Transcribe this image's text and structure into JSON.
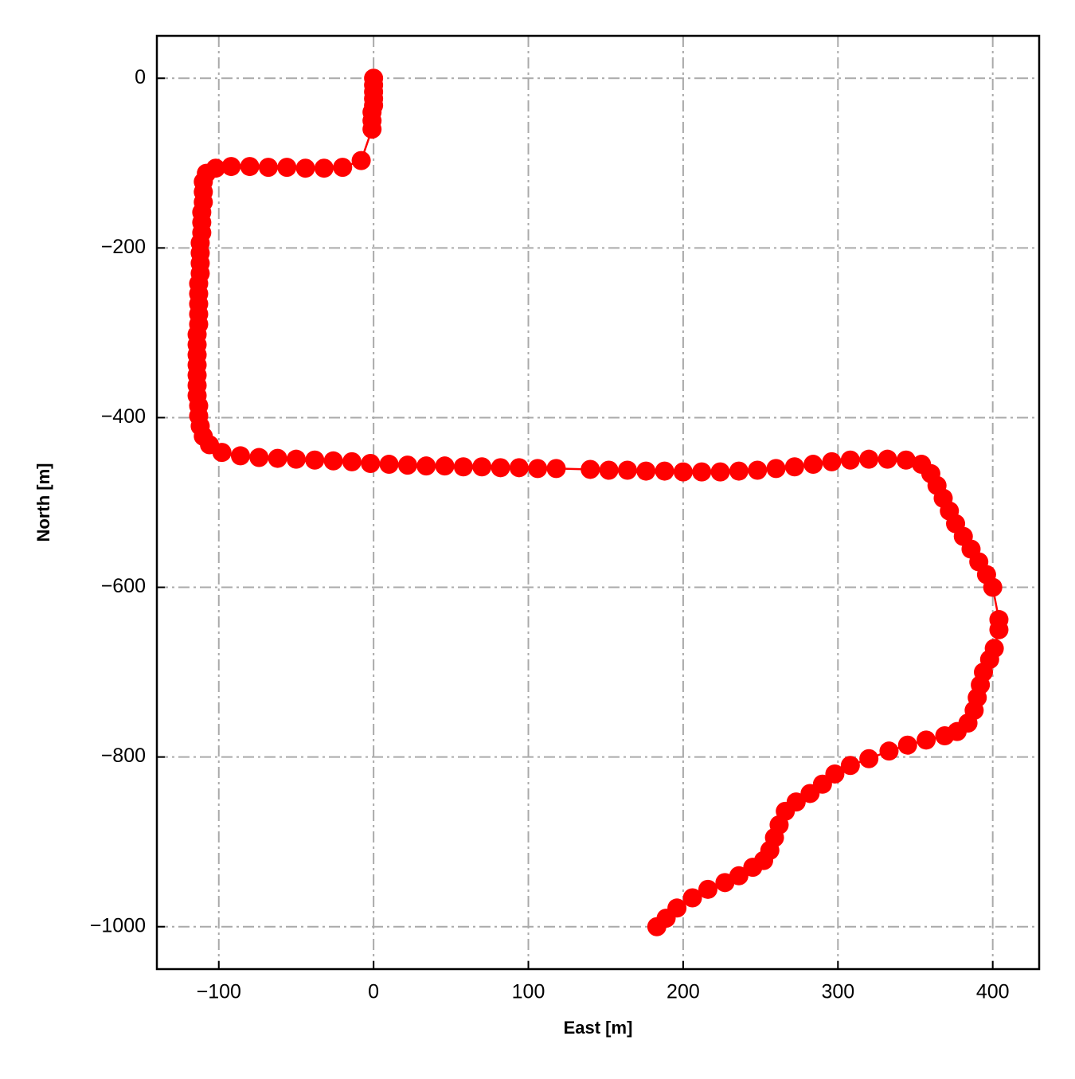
{
  "chart_data": {
    "type": "line",
    "xlabel": "East [m]",
    "ylabel": "North [m]",
    "x": [
      0,
      0,
      0,
      0,
      0,
      -1,
      -1,
      -1,
      -8,
      -20,
      -32,
      -44,
      -56,
      -68,
      -80,
      -92,
      -102,
      -108,
      -110,
      -110,
      -110,
      -111,
      -111,
      -111,
      -112,
      -112,
      -112,
      -112,
      -113,
      -113,
      -113,
      -113,
      -113,
      -114,
      -114,
      -114,
      -114,
      -114,
      -114,
      -114,
      -113,
      -113,
      -112,
      -110,
      -106,
      -98,
      -86,
      -74,
      -62,
      -50,
      -38,
      -26,
      -14,
      -2,
      10,
      22,
      34,
      46,
      58,
      70,
      82,
      94,
      106,
      118,
      140,
      152,
      164,
      176,
      188,
      200,
      212,
      224,
      236,
      248,
      260,
      272,
      284,
      296,
      308,
      320,
      332,
      344,
      354,
      360,
      364,
      368,
      372,
      376,
      381,
      386,
      391,
      396,
      400,
      404,
      404,
      401,
      398,
      394,
      392,
      390,
      388,
      384,
      377,
      369,
      357,
      345,
      333,
      320,
      308,
      298,
      290,
      282,
      273,
      266,
      262,
      259,
      256,
      252,
      245,
      236,
      227,
      216,
      206,
      196,
      189,
      183
    ],
    "series": [
      {
        "color": "#ff0000",
        "values": [
          0,
          -8,
          -16,
          -24,
          -32,
          -40,
          -50,
          -60,
          -97,
          -105,
          -106,
          -106,
          -105,
          -105,
          -104,
          -104,
          -106,
          -112,
          -122,
          -134,
          -146,
          -158,
          -170,
          -182,
          -194,
          -206,
          -218,
          -230,
          -242,
          -254,
          -266,
          -278,
          -290,
          -302,
          -314,
          -326,
          -338,
          -350,
          -362,
          -374,
          -386,
          -398,
          -410,
          -422,
          -432,
          -441,
          -445,
          -447,
          -448,
          -449,
          -450,
          -451,
          -452,
          -454,
          -455,
          -456,
          -457,
          -457,
          -458,
          -458,
          -459,
          -459,
          -460,
          -460,
          -461,
          -462,
          -462,
          -463,
          -463,
          -464,
          -464,
          -464,
          -463,
          -462,
          -460,
          -458,
          -455,
          -452,
          -450,
          -449,
          -449,
          -450,
          -455,
          -466,
          -480,
          -495,
          -510,
          -525,
          -540,
          -555,
          -570,
          -585,
          -600,
          -638,
          -650,
          -672,
          -685,
          -700,
          -715,
          -730,
          -745,
          -760,
          -770,
          -775,
          -780,
          -786,
          -793,
          -802,
          -810,
          -820,
          -832,
          -843,
          -853,
          -864,
          -880,
          -895,
          -910,
          -922,
          -930,
          -940,
          -948,
          -956,
          -966,
          -978,
          -990,
          -1000
        ]
      }
    ],
    "xlim": [
      -140,
      430
    ],
    "ylim": [
      -1050,
      50
    ],
    "xticks": [
      {
        "value": -100,
        "label": "−100"
      },
      0,
      100,
      200,
      300,
      400
    ],
    "yticks": [
      0,
      {
        "value": -200,
        "label": "−200"
      },
      {
        "value": -400,
        "label": "−400"
      },
      {
        "value": -600,
        "label": "−600"
      },
      {
        "value": -800,
        "label": "−800"
      },
      {
        "value": -1000,
        "label": "−1000"
      }
    ],
    "grid": true
  }
}
